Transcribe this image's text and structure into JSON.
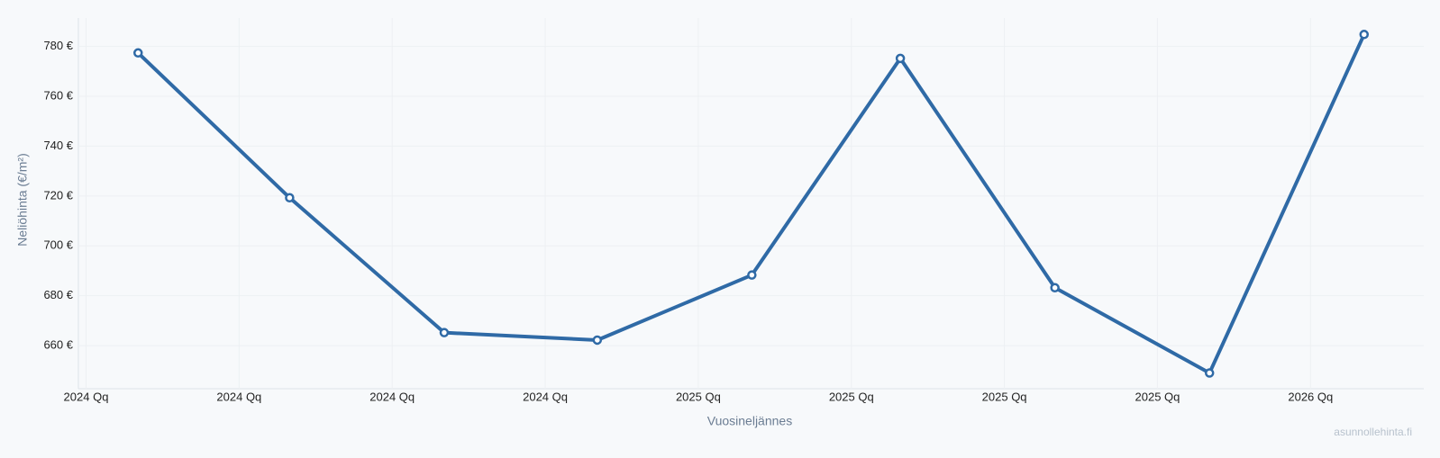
{
  "chart_data": {
    "type": "line",
    "y_axis_label": "Neliöhinta (€/m²)",
    "x_axis_label": "Vuosineljännes",
    "watermark": "asunnollehinta.fi",
    "x": [
      0.34,
      1.33,
      2.34,
      3.34,
      4.35,
      5.32,
      6.33,
      7.34,
      8.35
    ],
    "series": [
      {
        "color": "#2f6aa6",
        "values": [
          777.4,
          719.3,
          665.2,
          662.2,
          688.3,
          775.2,
          683.2,
          649.0,
          784.8
        ]
      }
    ],
    "xlim": [
      -0.05,
      8.74
    ],
    "xticks": [
      {
        "value": 0,
        "label": "2024 Qq"
      },
      {
        "value": 1,
        "label": "2024 Qq"
      },
      {
        "value": 2,
        "label": "2024 Qq"
      },
      {
        "value": 3,
        "label": "2024 Qq"
      },
      {
        "value": 4,
        "label": "2025 Qq"
      },
      {
        "value": 5,
        "label": "2025 Qq"
      },
      {
        "value": 6,
        "label": "2025 Qq"
      },
      {
        "value": 7,
        "label": "2025 Qq"
      },
      {
        "value": 8,
        "label": "2026 Qq"
      }
    ],
    "ylim": [
      642.7,
      791.4
    ],
    "yticks": [
      {
        "value": 660,
        "label": "660 €"
      },
      {
        "value": 680,
        "label": "680 €"
      },
      {
        "value": 700,
        "label": "700 €"
      },
      {
        "value": 720,
        "label": "720 €"
      },
      {
        "value": 740,
        "label": "740 €"
      },
      {
        "value": 760,
        "label": "760 €"
      },
      {
        "value": 780,
        "label": "780 €"
      }
    ],
    "grid": true
  }
}
